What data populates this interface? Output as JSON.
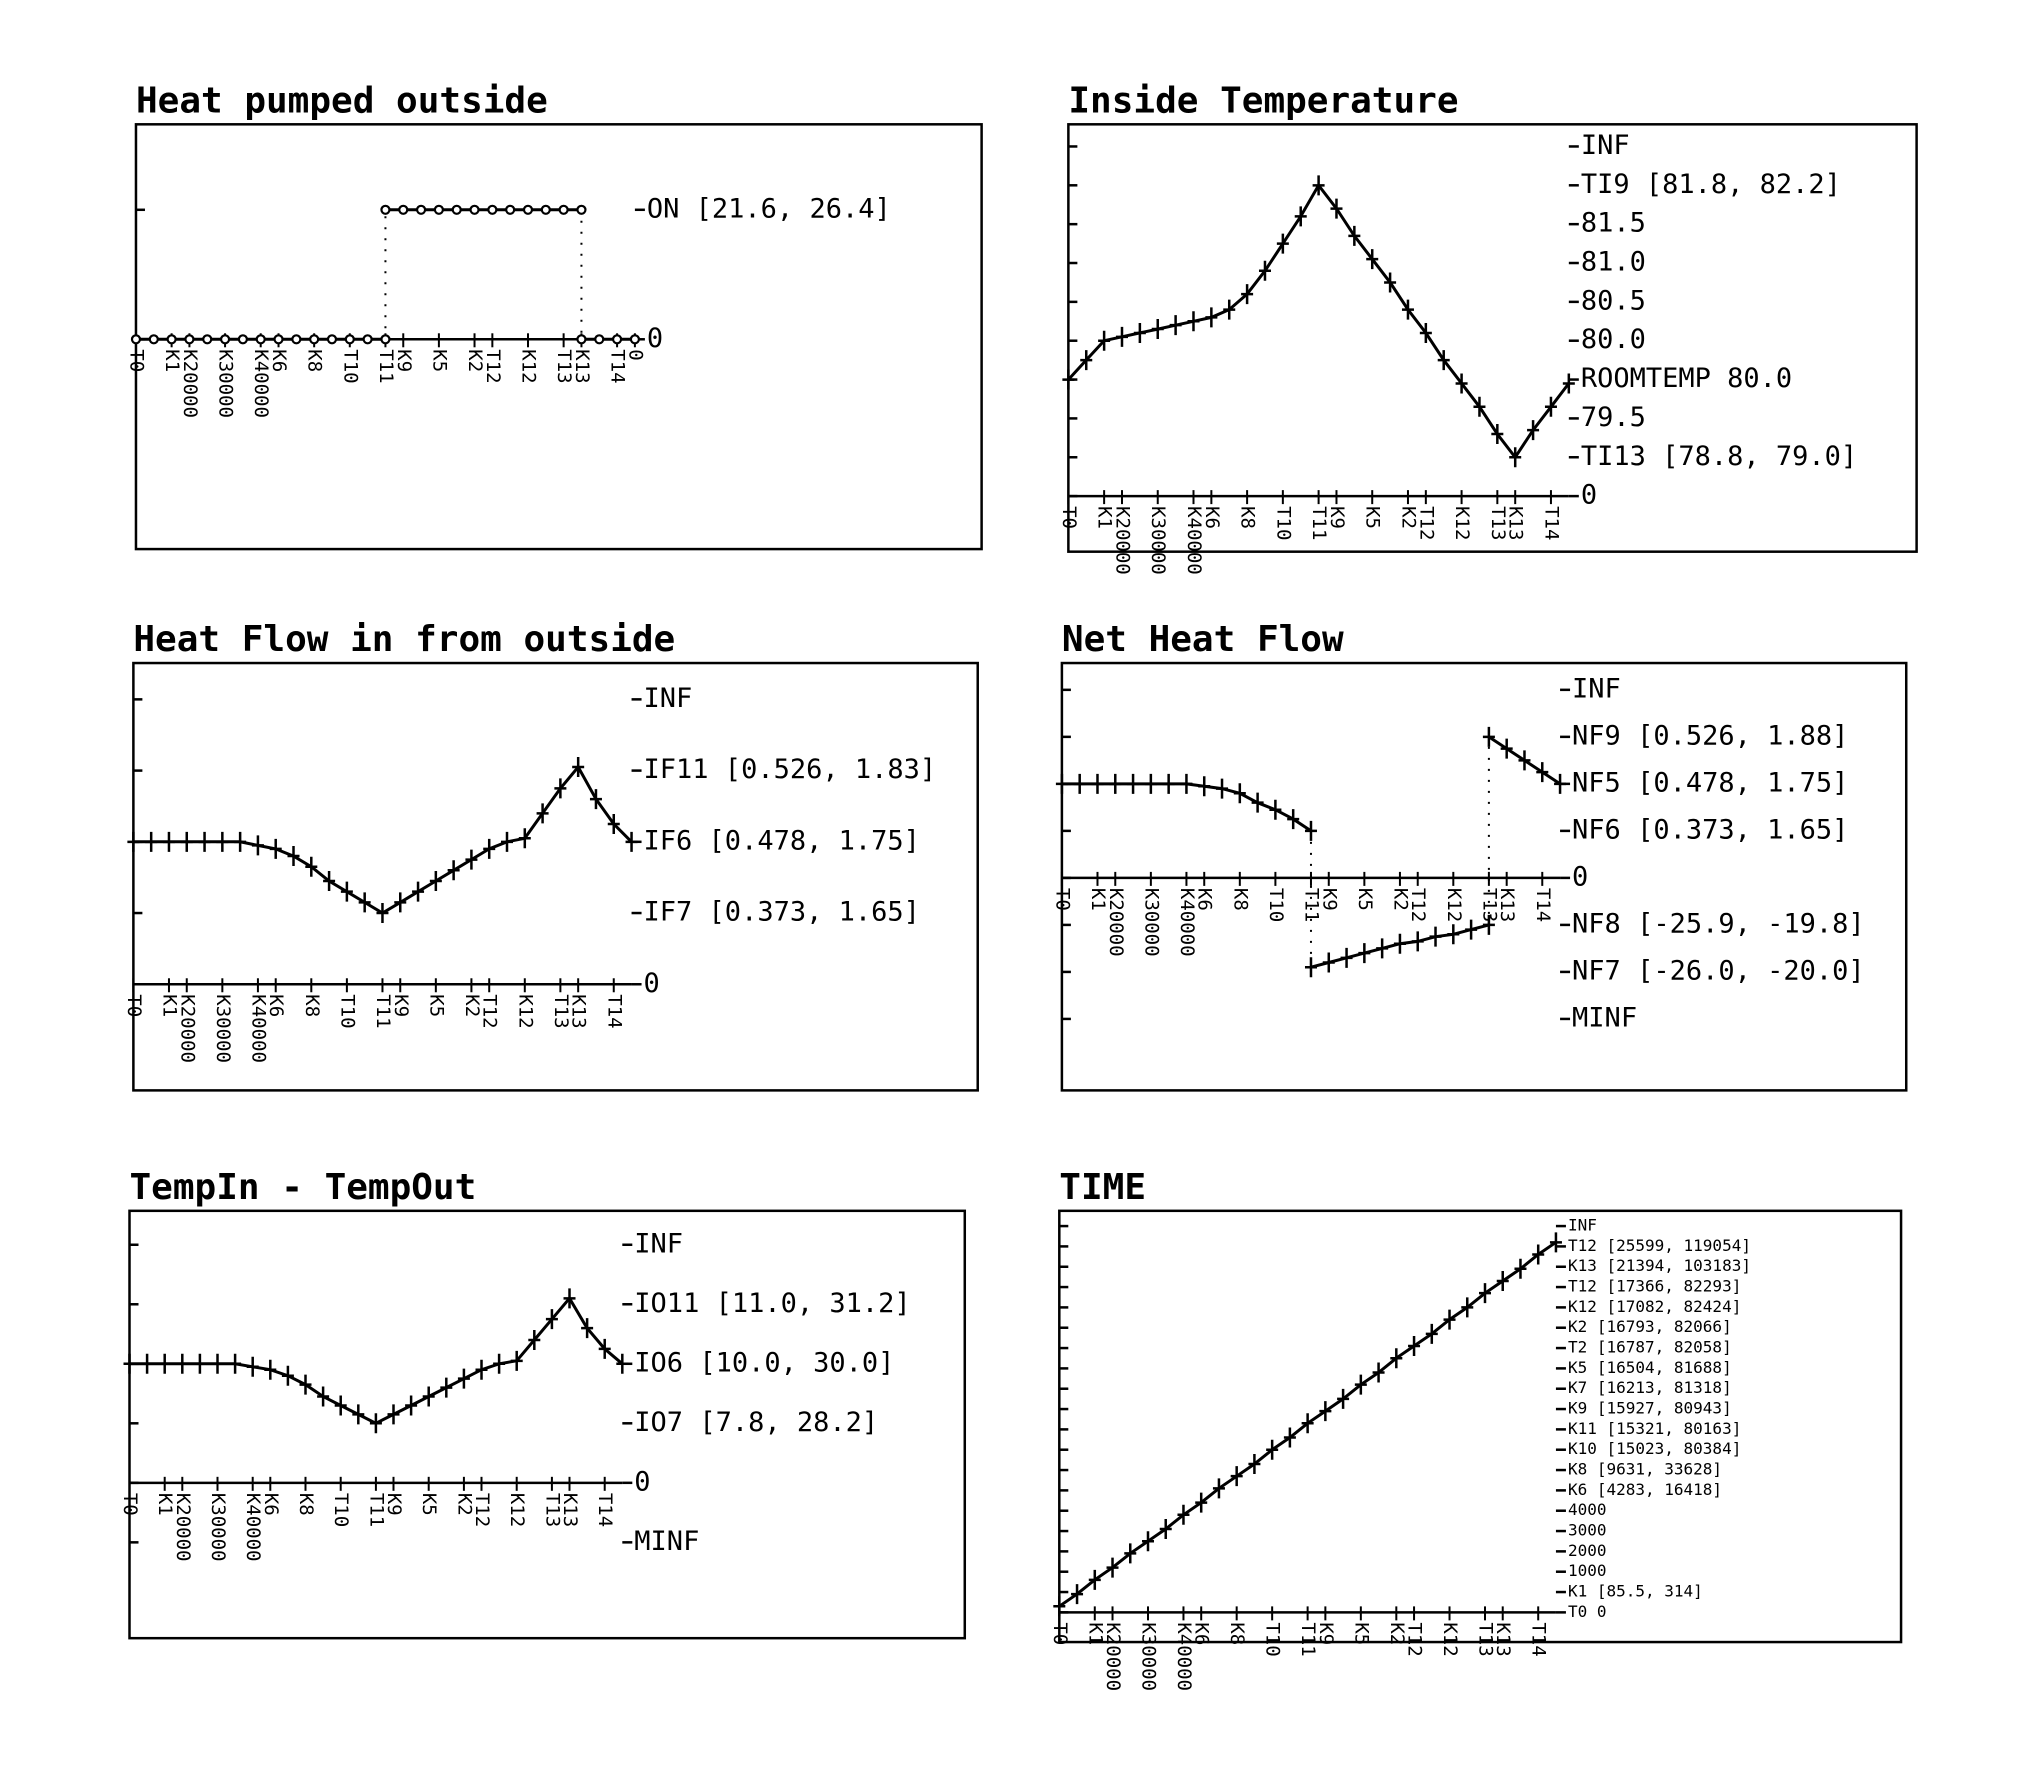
{
  "chart_data": [
    {
      "type": "line",
      "title": "Heat pumped outside",
      "marker": "circle",
      "color": "#000000",
      "x": [
        0,
        1,
        2,
        3,
        4,
        5,
        6,
        7,
        8,
        9,
        10,
        11,
        12,
        13,
        14,
        14,
        14,
        15,
        16,
        17,
        18,
        19,
        20,
        21,
        22,
        23,
        24,
        25,
        25,
        25,
        26,
        27,
        28
      ],
      "values": [
        0,
        0,
        0,
        0,
        0,
        0,
        0,
        0,
        0,
        0,
        0,
        0,
        0,
        0,
        0,
        null,
        1,
        1,
        1,
        1,
        1,
        1,
        1,
        1,
        1,
        1,
        1,
        1,
        null,
        0,
        0,
        0,
        0
      ],
      "xlim": [
        0,
        28
      ],
      "ylim": [
        -1.62,
        1.66
      ],
      "yticks": [
        0,
        {
          "value": 1,
          "label": "ON  [21.6, 26.4]"
        }
      ],
      "xticks": [
        {
          "value": 0,
          "label": "T0"
        },
        {
          "value": 2,
          "label": "K1"
        },
        {
          "value": 3,
          "label": "K20000"
        },
        {
          "value": 5,
          "label": "K30000"
        },
        {
          "value": 7,
          "label": "K40000"
        },
        {
          "value": 8,
          "label": "K6"
        },
        {
          "value": 10,
          "label": "K8"
        },
        {
          "value": 12,
          "label": "T10"
        },
        {
          "value": 14,
          "label": "T11"
        },
        {
          "value": 15,
          "label": "K9"
        },
        {
          "value": 17,
          "label": "K5"
        },
        {
          "value": 19,
          "label": "K2"
        },
        {
          "value": 20,
          "label": "T12"
        },
        {
          "value": 22,
          "label": "K12"
        },
        {
          "value": 24,
          "label": "T13"
        },
        {
          "value": 25,
          "label": "K13"
        },
        {
          "value": 27,
          "label": "T14"
        },
        {
          "value": 28,
          "label": "0"
        }
      ]
    },
    {
      "type": "line",
      "title": "Inside Temperature",
      "marker": "plus",
      "color": "#000000",
      "x": [
        0,
        1,
        2,
        3,
        4,
        5,
        6,
        7,
        8,
        9,
        10,
        11,
        12,
        13,
        14,
        15,
        16,
        17,
        18,
        19,
        20,
        21,
        22,
        23,
        24,
        25,
        26,
        27,
        28
      ],
      "values": [
        3.0,
        3.5,
        4.0,
        4.1,
        4.2,
        4.3,
        4.4,
        4.5,
        4.6,
        4.8,
        5.2,
        5.8,
        6.5,
        7.2,
        8.0,
        7.4,
        6.7,
        6.1,
        5.5,
        4.8,
        4.2,
        3.5,
        2.9,
        2.3,
        1.6,
        1.0,
        1.7,
        2.3,
        2.9
      ],
      "xlim": [
        0,
        28
      ],
      "ylim": [
        -1.43,
        9.57
      ],
      "yticks": [
        0,
        {
          "value": 1,
          "label": "TI13 [78.8, 79.0]"
        },
        {
          "value": 2,
          "label": "79.5"
        },
        {
          "value": 3,
          "label": "ROOMTEMP 80.0"
        },
        {
          "value": 4,
          "label": "80.0"
        },
        {
          "value": 5,
          "label": "80.5"
        },
        {
          "value": 6,
          "label": "81.0"
        },
        {
          "value": 7,
          "label": "81.5"
        },
        {
          "value": 8,
          "label": "TI9 [81.8, 82.2]"
        },
        {
          "value": 9,
          "label": "INF"
        }
      ],
      "xticks": [
        {
          "value": 0,
          "label": "T0"
        },
        {
          "value": 2,
          "label": "K1"
        },
        {
          "value": 3,
          "label": "K20000"
        },
        {
          "value": 5,
          "label": "K30000"
        },
        {
          "value": 7,
          "label": "K40000"
        },
        {
          "value": 8,
          "label": "K6"
        },
        {
          "value": 10,
          "label": "K8"
        },
        {
          "value": 12,
          "label": "T10"
        },
        {
          "value": 14,
          "label": "T11"
        },
        {
          "value": 15,
          "label": "K9"
        },
        {
          "value": 17,
          "label": "K5"
        },
        {
          "value": 19,
          "label": "K2"
        },
        {
          "value": 20,
          "label": "T12"
        },
        {
          "value": 22,
          "label": "K12"
        },
        {
          "value": 24,
          "label": "T13"
        },
        {
          "value": 25,
          "label": "K13"
        },
        {
          "value": 27,
          "label": "T14"
        }
      ]
    },
    {
      "type": "line",
      "title": "Heat Flow in from outside",
      "marker": "plus",
      "color": "#000000",
      "x": [
        0,
        1,
        2,
        3,
        4,
        5,
        6,
        7,
        8,
        9,
        10,
        11,
        12,
        13,
        14,
        15,
        16,
        17,
        18,
        19,
        20,
        21,
        22,
        23,
        24,
        25,
        26,
        27,
        28
      ],
      "values": [
        2.0,
        2.0,
        2.0,
        2.0,
        2.0,
        2.0,
        2.0,
        1.95,
        1.9,
        1.8,
        1.65,
        1.45,
        1.3,
        1.15,
        1.0,
        1.15,
        1.3,
        1.45,
        1.6,
        1.75,
        1.9,
        2.0,
        2.05,
        2.4,
        2.75,
        3.05,
        2.6,
        2.25,
        2.0
      ],
      "xlim": [
        0,
        28
      ],
      "ylim": [
        -1.49,
        4.51
      ],
      "yticks": [
        0,
        {
          "value": 1,
          "label": "IF7 [0.373, 1.65]"
        },
        {
          "value": 2,
          "label": "IF6 [0.478, 1.75]"
        },
        {
          "value": 3,
          "label": "IF11 [0.526, 1.83]"
        },
        {
          "value": 4,
          "label": "INF"
        }
      ],
      "xticks": [
        {
          "value": 0,
          "label": "T0"
        },
        {
          "value": 2,
          "label": "K1"
        },
        {
          "value": 3,
          "label": "K20000"
        },
        {
          "value": 5,
          "label": "K30000"
        },
        {
          "value": 7,
          "label": "K40000"
        },
        {
          "value": 8,
          "label": "K6"
        },
        {
          "value": 10,
          "label": "K8"
        },
        {
          "value": 12,
          "label": "T10"
        },
        {
          "value": 14,
          "label": "T11"
        },
        {
          "value": 15,
          "label": "K9"
        },
        {
          "value": 17,
          "label": "K5"
        },
        {
          "value": 19,
          "label": "K2"
        },
        {
          "value": 20,
          "label": "T12"
        },
        {
          "value": 22,
          "label": "K12"
        },
        {
          "value": 24,
          "label": "T13"
        },
        {
          "value": 25,
          "label": "K13"
        },
        {
          "value": 27,
          "label": "T14"
        }
      ]
    },
    {
      "type": "line",
      "title": "Net Heat Flow",
      "marker": "plus",
      "color": "#000000",
      "x": [
        0,
        1,
        2,
        3,
        4,
        5,
        6,
        7,
        8,
        9,
        10,
        11,
        12,
        13,
        14,
        14,
        14,
        15,
        16,
        17,
        18,
        19,
        20,
        21,
        22,
        23,
        24,
        24,
        24,
        25,
        26,
        27,
        28
      ],
      "values": [
        2.0,
        2.0,
        2.0,
        2.0,
        2.0,
        2.0,
        2.0,
        2.0,
        1.95,
        1.9,
        1.8,
        1.6,
        1.45,
        1.25,
        1.0,
        null,
        -1.9,
        -1.8,
        -1.7,
        -1.6,
        -1.5,
        -1.4,
        -1.35,
        -1.25,
        -1.2,
        -1.1,
        -1.0,
        null,
        3.0,
        2.75,
        2.5,
        2.25,
        2.0
      ],
      "xlim": [
        0,
        28
      ],
      "ylim": [
        -4.52,
        4.57
      ],
      "yticks": [
        {
          "value": -3,
          "label": "MINF"
        },
        {
          "value": -2,
          "label": "NF7 [-26.0, -20.0]"
        },
        {
          "value": -1,
          "label": "NF8 [-25.9, -19.8]"
        },
        0,
        {
          "value": 1,
          "label": "NF6 [0.373, 1.65]"
        },
        {
          "value": 2,
          "label": "NF5 [0.478, 1.75]"
        },
        {
          "value": 3,
          "label": "NF9 [0.526, 1.88]"
        },
        {
          "value": 4,
          "label": "INF"
        }
      ],
      "xticks": [
        {
          "value": 0,
          "label": "T0"
        },
        {
          "value": 2,
          "label": "K1"
        },
        {
          "value": 3,
          "label": "K20000"
        },
        {
          "value": 5,
          "label": "K30000"
        },
        {
          "value": 7,
          "label": "K40000"
        },
        {
          "value": 8,
          "label": "K6"
        },
        {
          "value": 10,
          "label": "K8"
        },
        {
          "value": 12,
          "label": "T10"
        },
        {
          "value": 14,
          "label": "T11"
        },
        {
          "value": 15,
          "label": "K9"
        },
        {
          "value": 17,
          "label": "K5"
        },
        {
          "value": 19,
          "label": "K2"
        },
        {
          "value": 20,
          "label": "T12"
        },
        {
          "value": 22,
          "label": "K12"
        },
        {
          "value": 24,
          "label": "T13"
        },
        {
          "value": 25,
          "label": "K13"
        },
        {
          "value": 27,
          "label": "T14"
        }
      ]
    },
    {
      "type": "line",
      "title": "TempIn - TempOut",
      "marker": "plus",
      "color": "#000000",
      "x": [
        0,
        1,
        2,
        3,
        4,
        5,
        6,
        7,
        8,
        9,
        10,
        11,
        12,
        13,
        14,
        15,
        16,
        17,
        18,
        19,
        20,
        21,
        22,
        23,
        24,
        25,
        26,
        27,
        28
      ],
      "values": [
        2.0,
        2.0,
        2.0,
        2.0,
        2.0,
        2.0,
        2.0,
        1.95,
        1.9,
        1.8,
        1.65,
        1.45,
        1.3,
        1.15,
        1.0,
        1.15,
        1.3,
        1.45,
        1.6,
        1.75,
        1.9,
        2.0,
        2.05,
        2.4,
        2.75,
        3.1,
        2.6,
        2.25,
        2.0
      ],
      "xlim": [
        0,
        28
      ],
      "ylim": [
        -2.61,
        4.57
      ],
      "yticks": [
        {
          "value": -1,
          "label": "MINF"
        },
        0,
        {
          "value": 1,
          "label": "IO7 [7.8, 28.2]"
        },
        {
          "value": 2,
          "label": "IO6 [10.0, 30.0]"
        },
        {
          "value": 3,
          "label": "IO11 [11.0, 31.2]"
        },
        {
          "value": 4,
          "label": "INF"
        }
      ],
      "xticks": [
        {
          "value": 0,
          "label": "T0"
        },
        {
          "value": 2,
          "label": "K1"
        },
        {
          "value": 3,
          "label": "K20000"
        },
        {
          "value": 5,
          "label": "K30000"
        },
        {
          "value": 7,
          "label": "K40000"
        },
        {
          "value": 8,
          "label": "K6"
        },
        {
          "value": 10,
          "label": "K8"
        },
        {
          "value": 12,
          "label": "T10"
        },
        {
          "value": 14,
          "label": "T11"
        },
        {
          "value": 15,
          "label": "K9"
        },
        {
          "value": 17,
          "label": "K5"
        },
        {
          "value": 19,
          "label": "K2"
        },
        {
          "value": 20,
          "label": "T12"
        },
        {
          "value": 22,
          "label": "K12"
        },
        {
          "value": 24,
          "label": "T13"
        },
        {
          "value": 25,
          "label": "K13"
        },
        {
          "value": 27,
          "label": "T14"
        }
      ]
    },
    {
      "type": "line",
      "title": "TIME",
      "marker": "plus",
      "color": "#000000",
      "x": [
        0,
        1,
        2,
        3,
        4,
        5,
        6,
        7,
        8,
        9,
        10,
        11,
        12,
        13,
        14,
        15,
        16,
        17,
        18,
        19,
        20,
        21,
        22,
        23,
        24,
        25,
        26,
        27,
        28
      ],
      "values": [
        0.3,
        0.9,
        1.6,
        2.2,
        2.9,
        3.5,
        4.1,
        4.8,
        5.4,
        6.1,
        6.7,
        7.3,
        8.0,
        8.6,
        9.3,
        9.9,
        10.5,
        11.2,
        11.8,
        12.5,
        13.1,
        13.7,
        14.4,
        15.0,
        15.7,
        16.3,
        16.9,
        17.6,
        18.2
      ],
      "xlim": [
        0,
        28
      ],
      "ylim": [
        -1.46,
        19.75
      ],
      "yticks": [
        {
          "value": 0,
          "label": "T0  0"
        },
        {
          "value": 1,
          "label": "K1  [85.5, 314]"
        },
        {
          "value": 2,
          "label": "1000"
        },
        {
          "value": 3,
          "label": "2000"
        },
        {
          "value": 4,
          "label": "3000"
        },
        {
          "value": 5,
          "label": "4000"
        },
        {
          "value": 6,
          "label": "K6  [4283, 16418]"
        },
        {
          "value": 7,
          "label": "K8  [9631, 33628]"
        },
        {
          "value": 8,
          "label": "K10 [15023, 80384]"
        },
        {
          "value": 9,
          "label": "K11 [15321, 80163]"
        },
        {
          "value": 10,
          "label": "K9  [15927, 80943]"
        },
        {
          "value": 11,
          "label": "K7  [16213, 81318]"
        },
        {
          "value": 12,
          "label": "K5  [16504, 81688]"
        },
        {
          "value": 13,
          "label": "T2  [16787, 82058]"
        },
        {
          "value": 14,
          "label": "K2  [16793, 82066]"
        },
        {
          "value": 15,
          "label": "K12 [17082, 82424]"
        },
        {
          "value": 16,
          "label": "T12 [17366, 82293]"
        },
        {
          "value": 17,
          "label": "K13 [21394, 103183]"
        },
        {
          "value": 18,
          "label": "T12 [25599, 119054]"
        },
        {
          "value": 19,
          "label": "INF"
        }
      ],
      "xticks": [
        {
          "value": 0,
          "label": "T0"
        },
        {
          "value": 2,
          "label": "K1"
        },
        {
          "value": 3,
          "label": "K20000"
        },
        {
          "value": 5,
          "label": "K30000"
        },
        {
          "value": 7,
          "label": "K40000"
        },
        {
          "value": 8,
          "label": "K6"
        },
        {
          "value": 10,
          "label": "K8"
        },
        {
          "value": 12,
          "label": "T10"
        },
        {
          "value": 14,
          "label": "T11"
        },
        {
          "value": 15,
          "label": "K9"
        },
        {
          "value": 17,
          "label": "K5"
        },
        {
          "value": 19,
          "label": "K2"
        },
        {
          "value": 20,
          "label": "T12"
        },
        {
          "value": 22,
          "label": "K12"
        },
        {
          "value": 24,
          "label": "T13"
        },
        {
          "value": 25,
          "label": "K13"
        },
        {
          "value": 27,
          "label": "T14"
        }
      ]
    }
  ]
}
